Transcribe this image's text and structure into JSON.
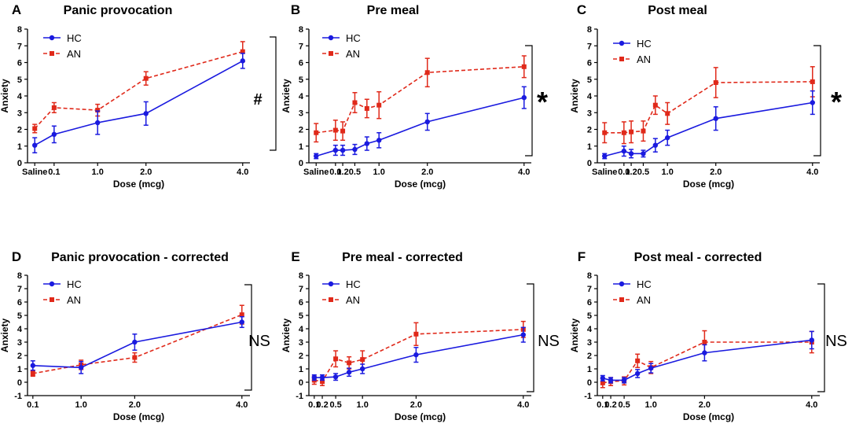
{
  "figure": {
    "background": "#ffffff",
    "colors": {
      "HC": "#1a1adf",
      "AN": "#e0291a"
    }
  },
  "chart_data": [
    {
      "type": "line",
      "panel": "A",
      "title": "Panic provocation",
      "xlabel": "Dose (mcg)",
      "ylabel": "Anxiety",
      "xlim": [
        -0.45,
        4.15
      ],
      "ylim": [
        0,
        8
      ],
      "yticks": [
        0,
        1,
        2,
        3,
        4,
        5,
        6,
        7,
        8
      ],
      "xticks": [
        {
          "v": -0.3,
          "label": "Saline"
        },
        {
          "v": 0.1,
          "label": "0.1"
        },
        {
          "v": 1.0,
          "label": "1.0"
        },
        {
          "v": 2.0,
          "label": "2.0"
        },
        {
          "v": 4.0,
          "label": "4.0"
        }
      ],
      "legend": [
        "HC",
        "AN"
      ],
      "significance": "#",
      "series": [
        {
          "name": "HC",
          "x": [
            -0.3,
            0.1,
            1.0,
            2.0,
            4.0
          ],
          "y": [
            1.05,
            1.7,
            2.4,
            2.95,
            6.1
          ],
          "err": [
            0.45,
            0.5,
            0.7,
            0.7,
            0.45
          ]
        },
        {
          "name": "AN",
          "x": [
            -0.3,
            0.1,
            1.0,
            2.0,
            4.0
          ],
          "y": [
            2.05,
            3.3,
            3.15,
            5.05,
            6.65
          ],
          "err": [
            0.25,
            0.3,
            0.35,
            0.4,
            0.6
          ]
        }
      ]
    },
    {
      "type": "line",
      "panel": "B",
      "title": "Pre meal",
      "xlabel": "Dose (mcg)",
      "ylabel": "Anxiety",
      "xlim": [
        -0.45,
        4.15
      ],
      "ylim": [
        0,
        8
      ],
      "yticks": [
        0,
        1,
        2,
        3,
        4,
        5,
        6,
        7,
        8
      ],
      "xticks": [
        {
          "v": -0.3,
          "label": "Saline"
        },
        {
          "v": 0.1,
          "label": "0.1"
        },
        {
          "v": 0.25,
          "label": "0.2"
        },
        {
          "v": 0.5,
          "label": "0.5"
        },
        {
          "v": 1.0,
          "label": "1.0"
        },
        {
          "v": 2.0,
          "label": "2.0"
        },
        {
          "v": 4.0,
          "label": "4.0"
        }
      ],
      "legend": [
        "HC",
        "AN"
      ],
      "significance": "*",
      "series": [
        {
          "name": "HC",
          "x": [
            -0.3,
            0.1,
            0.25,
            0.5,
            0.75,
            1.0,
            2.0,
            4.0
          ],
          "y": [
            0.4,
            0.75,
            0.75,
            0.8,
            1.15,
            1.35,
            2.45,
            3.9
          ],
          "err": [
            0.15,
            0.3,
            0.3,
            0.3,
            0.4,
            0.45,
            0.5,
            0.65
          ]
        },
        {
          "name": "AN",
          "x": [
            -0.3,
            0.1,
            0.25,
            0.5,
            0.75,
            1.0,
            2.0,
            4.0
          ],
          "y": [
            1.8,
            1.95,
            1.9,
            3.6,
            3.25,
            3.45,
            5.4,
            5.75
          ],
          "err": [
            0.55,
            0.6,
            0.55,
            0.6,
            0.55,
            0.8,
            0.85,
            0.65
          ]
        }
      ]
    },
    {
      "type": "line",
      "panel": "C",
      "title": "Post meal",
      "xlabel": "Dose (mcg)",
      "ylabel": "Anxiety",
      "xlim": [
        -0.45,
        4.15
      ],
      "ylim": [
        0,
        8
      ],
      "yticks": [
        0,
        1,
        2,
        3,
        4,
        5,
        6,
        7,
        8
      ],
      "xticks": [
        {
          "v": -0.3,
          "label": "Saline"
        },
        {
          "v": 0.1,
          "label": "0.1"
        },
        {
          "v": 0.25,
          "label": "0.2"
        },
        {
          "v": 0.5,
          "label": "0.5"
        },
        {
          "v": 1.0,
          "label": "1.0"
        },
        {
          "v": 2.0,
          "label": "2.0"
        },
        {
          "v": 4.0,
          "label": "4.0"
        }
      ],
      "legend": [
        "HC",
        "AN"
      ],
      "significance": "*",
      "series": [
        {
          "name": "HC",
          "x": [
            -0.3,
            0.1,
            0.25,
            0.5,
            0.75,
            1.0,
            2.0,
            4.0
          ],
          "y": [
            0.4,
            0.7,
            0.55,
            0.55,
            1.05,
            1.5,
            2.65,
            3.6
          ],
          "err": [
            0.15,
            0.3,
            0.25,
            0.2,
            0.4,
            0.45,
            0.7,
            0.7
          ]
        },
        {
          "name": "AN",
          "x": [
            -0.3,
            0.1,
            0.25,
            0.5,
            0.75,
            1.0,
            2.0,
            4.0
          ],
          "y": [
            1.8,
            1.8,
            1.85,
            1.9,
            3.45,
            2.95,
            4.8,
            4.85
          ],
          "err": [
            0.6,
            0.65,
            0.65,
            0.6,
            0.55,
            0.65,
            0.9,
            0.9
          ]
        }
      ]
    },
    {
      "type": "line",
      "panel": "D",
      "title": "Panic provocation - corrected",
      "xlabel": "Dose (mcg)",
      "ylabel": "Anxiety",
      "xlim": [
        0.0,
        4.15
      ],
      "ylim": [
        -1,
        8
      ],
      "yticks": [
        -1,
        0,
        1,
        2,
        3,
        4,
        5,
        6,
        7,
        8
      ],
      "xticks": [
        {
          "v": 0.1,
          "label": "0.1"
        },
        {
          "v": 1.0,
          "label": "1.0"
        },
        {
          "v": 2.0,
          "label": "2.0"
        },
        {
          "v": 4.0,
          "label": "4.0"
        }
      ],
      "legend": [
        "HC",
        "AN"
      ],
      "significance": "NS",
      "series": [
        {
          "name": "HC",
          "x": [
            0.1,
            1.0,
            2.0,
            4.0
          ],
          "y": [
            1.25,
            1.1,
            3.0,
            4.5
          ],
          "err": [
            0.35,
            0.45,
            0.6,
            0.4
          ]
        },
        {
          "name": "AN",
          "x": [
            0.1,
            1.0,
            2.0,
            4.0
          ],
          "y": [
            0.65,
            1.3,
            1.85,
            5.05
          ],
          "err": [
            0.2,
            0.35,
            0.35,
            0.7
          ]
        }
      ]
    },
    {
      "type": "line",
      "panel": "E",
      "title": "Pre meal - corrected",
      "xlabel": "Dose (mcg)",
      "ylabel": "Anxiety",
      "xlim": [
        0.0,
        4.15
      ],
      "ylim": [
        -1,
        8
      ],
      "yticks": [
        -1,
        0,
        1,
        2,
        3,
        4,
        5,
        6,
        7,
        8
      ],
      "xticks": [
        {
          "v": 0.1,
          "label": "0.1"
        },
        {
          "v": 0.25,
          "label": "0.2"
        },
        {
          "v": 0.5,
          "label": "0.5"
        },
        {
          "v": 1.0,
          "label": "1.0"
        },
        {
          "v": 2.0,
          "label": "2.0"
        },
        {
          "v": 4.0,
          "label": "4.0"
        }
      ],
      "legend": [
        "HC",
        "AN"
      ],
      "significance": "NS",
      "series": [
        {
          "name": "HC",
          "x": [
            0.1,
            0.25,
            0.5,
            0.75,
            1.0,
            2.0,
            4.0
          ],
          "y": [
            0.35,
            0.35,
            0.4,
            0.75,
            1.0,
            2.05,
            3.55
          ],
          "err": [
            0.2,
            0.2,
            0.25,
            0.3,
            0.35,
            0.55,
            0.55
          ]
        },
        {
          "name": "AN",
          "x": [
            0.1,
            0.25,
            0.5,
            0.75,
            1.0,
            2.0,
            4.0
          ],
          "y": [
            0.15,
            0.05,
            1.75,
            1.45,
            1.7,
            3.6,
            3.95
          ],
          "err": [
            0.3,
            0.3,
            0.6,
            0.45,
            0.65,
            0.85,
            0.6
          ]
        }
      ]
    },
    {
      "type": "line",
      "panel": "F",
      "title": "Post meal - corrected",
      "xlabel": "Dose (mcg)",
      "ylabel": "Anxiety",
      "xlim": [
        0.0,
        4.15
      ],
      "ylim": [
        -1,
        8
      ],
      "yticks": [
        -1,
        0,
        1,
        2,
        3,
        4,
        5,
        6,
        7,
        8
      ],
      "xticks": [
        {
          "v": 0.1,
          "label": "0.1"
        },
        {
          "v": 0.25,
          "label": "0.2"
        },
        {
          "v": 0.5,
          "label": "0.5"
        },
        {
          "v": 1.0,
          "label": "1.0"
        },
        {
          "v": 2.0,
          "label": "2.0"
        },
        {
          "v": 4.0,
          "label": "4.0"
        }
      ],
      "legend": [
        "HC",
        "AN"
      ],
      "significance": "NS",
      "series": [
        {
          "name": "HC",
          "x": [
            0.1,
            0.25,
            0.5,
            0.75,
            1.0,
            2.0,
            4.0
          ],
          "y": [
            0.3,
            0.15,
            0.15,
            0.65,
            1.05,
            2.2,
            3.15
          ],
          "err": [
            0.2,
            0.2,
            0.2,
            0.3,
            0.35,
            0.6,
            0.65
          ]
        },
        {
          "name": "AN",
          "x": [
            0.1,
            0.25,
            0.5,
            0.75,
            1.0,
            2.0,
            4.0
          ],
          "y": [
            -0.05,
            0.05,
            0.1,
            1.6,
            1.1,
            3.0,
            3.0
          ],
          "err": [
            0.35,
            0.3,
            0.3,
            0.5,
            0.45,
            0.85,
            0.8
          ]
        }
      ]
    }
  ]
}
